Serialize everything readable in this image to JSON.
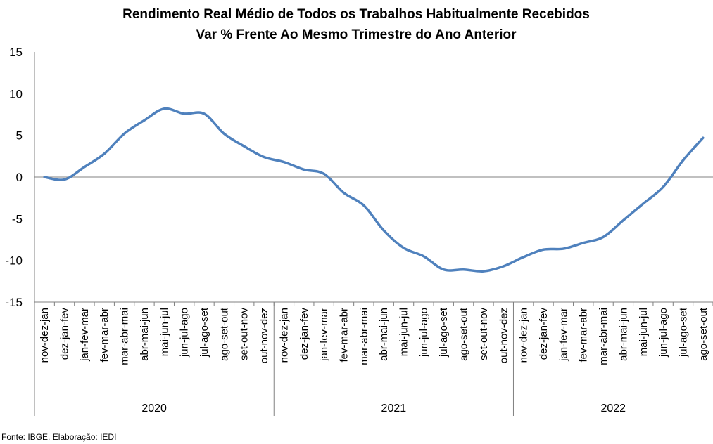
{
  "chart_data": {
    "type": "line",
    "title": "Rendimento Real Médio de Todos os Trabalhos Habitualmente Recebidos",
    "subtitle": "Var % Frente Ao Mesmo Trimestre do Ano Anterior",
    "xlabel": "",
    "ylabel": "",
    "ylim": [
      -15,
      15
    ],
    "yticks": [
      "15",
      "10",
      "5",
      "0",
      "-5",
      "-10",
      "-15"
    ],
    "grid": false,
    "legend": "none",
    "line_color": "#4F81BD",
    "categories": [
      "nov-dez-jan",
      "dez-jan-fev",
      "jan-fev-mar",
      "fev-mar-abr",
      "mar-abr-mai",
      "abr-mai-jun",
      "mai-jun-jul",
      "jun-jul-ago",
      "jul-ago-set",
      "ago-set-out",
      "set-out-nov",
      "out-nov-dez",
      "nov-dez-jan",
      "dez-jan-fev",
      "jan-fev-mar",
      "fev-mar-abr",
      "mar-abr-mai",
      "abr-mai-jun",
      "mai-jun-jul",
      "jun-jul-ago",
      "jul-ago-set",
      "ago-set-out",
      "set-out-nov",
      "out-nov-dez",
      "nov-dez-jan",
      "dez-jan-fev",
      "jan-fev-mar",
      "fev-mar-abr",
      "mar-abr-mai",
      "abr-mai-jun",
      "mai-jun-jul",
      "jun-jul-ago",
      "jul-ago-set",
      "ago-set-out"
    ],
    "groups": [
      {
        "label": "2020",
        "count": 12
      },
      {
        "label": "2021",
        "count": 12
      },
      {
        "label": "2022",
        "count": 10
      }
    ],
    "values": [
      0.0,
      -0.3,
      1.2,
      2.8,
      5.2,
      6.8,
      8.2,
      7.6,
      7.6,
      5.2,
      3.7,
      2.4,
      1.8,
      0.9,
      0.4,
      -1.9,
      -3.4,
      -6.4,
      -8.5,
      -9.5,
      -11.1,
      -11.1,
      -11.3,
      -10.7,
      -9.6,
      -8.7,
      -8.6,
      -7.9,
      -7.2,
      -5.2,
      -3.2,
      -1.2,
      2.0,
      4.7
    ]
  },
  "footer": {
    "source": "Fonte: IBGE. Elaboração: IEDI"
  }
}
